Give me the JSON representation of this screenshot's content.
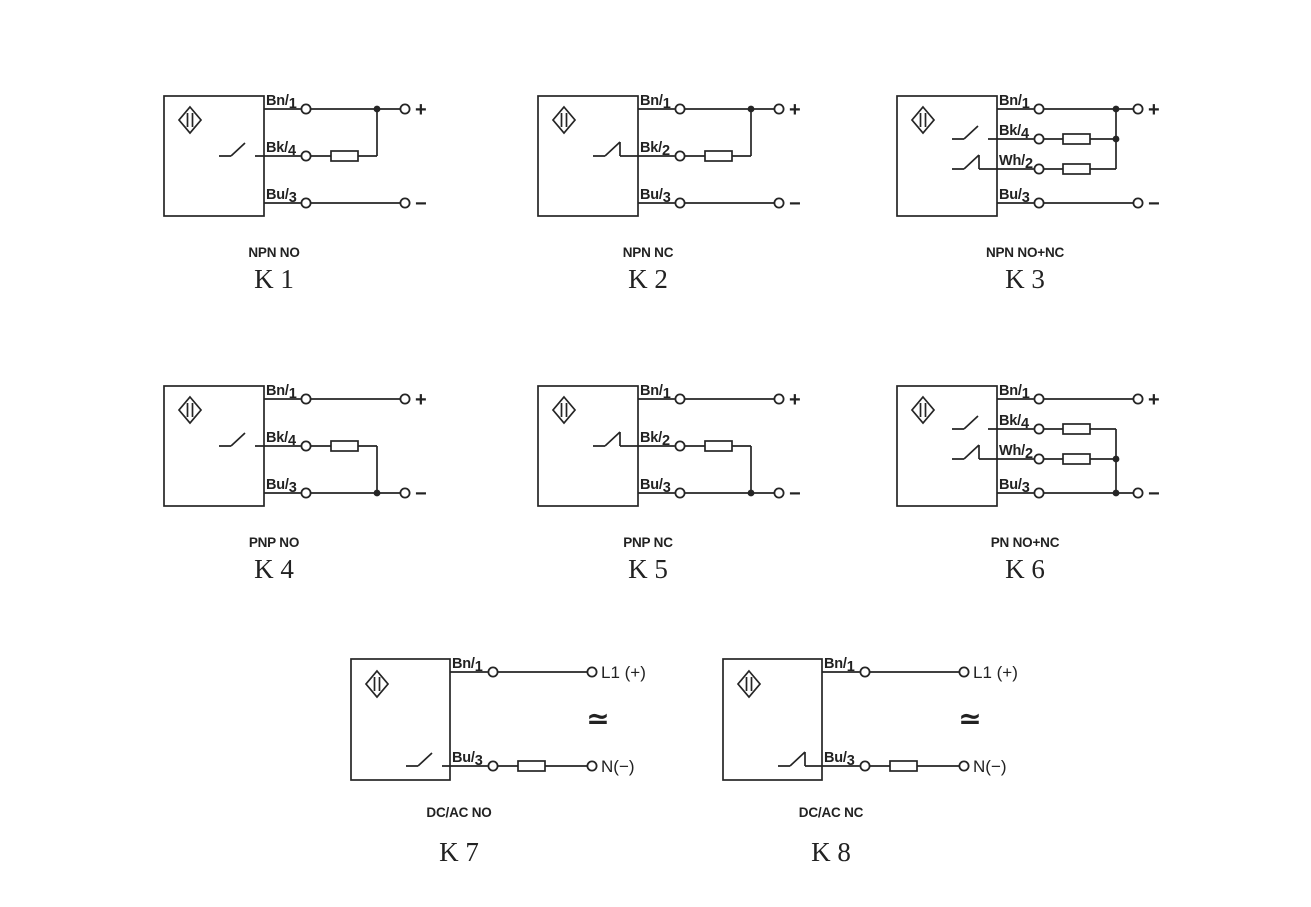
{
  "canvas": {
    "background": "#ffffff",
    "line_color": "#252525"
  },
  "diagrams": [
    {
      "id": "k1",
      "circuit": "NPN NO",
      "code": "K 1",
      "wires": [
        {
          "label": "Bn/1"
        },
        {
          "label": "Bk/4"
        },
        {
          "label": "Bu/3"
        }
      ],
      "terminals": [
        {
          "label": "+"
        },
        {
          "label": "−"
        }
      ],
      "switches": [
        "NO"
      ]
    },
    {
      "id": "k2",
      "circuit": "NPN NC",
      "code": "K 2",
      "wires": [
        {
          "label": "Bn/1"
        },
        {
          "label": "Bk/2"
        },
        {
          "label": "Bu/3"
        }
      ],
      "terminals": [
        {
          "label": "+"
        },
        {
          "label": "−"
        }
      ],
      "switches": [
        "NC"
      ]
    },
    {
      "id": "k3",
      "circuit": "NPN NO+NC",
      "code": "K 3",
      "wires": [
        {
          "label": "Bn/1"
        },
        {
          "label": "Bk/4"
        },
        {
          "label": "Wh/2"
        },
        {
          "label": "Bu/3"
        }
      ],
      "terminals": [
        {
          "label": "+"
        },
        {
          "label": "−"
        }
      ],
      "switches": [
        "NO",
        "NC"
      ]
    },
    {
      "id": "k4",
      "circuit": "PNP NO",
      "code": "K 4",
      "wires": [
        {
          "label": "Bn/1"
        },
        {
          "label": "Bk/4"
        },
        {
          "label": "Bu/3"
        }
      ],
      "terminals": [
        {
          "label": "+"
        },
        {
          "label": "−"
        }
      ],
      "switches": [
        "NO"
      ]
    },
    {
      "id": "k5",
      "circuit": "PNP NC",
      "code": "K 5",
      "wires": [
        {
          "label": "Bn/1"
        },
        {
          "label": "Bk/2"
        },
        {
          "label": "Bu/3"
        }
      ],
      "terminals": [
        {
          "label": "+"
        },
        {
          "label": "−"
        }
      ],
      "switches": [
        "NC"
      ]
    },
    {
      "id": "k6",
      "circuit": "PN NO+NC",
      "code": "K 6",
      "wires": [
        {
          "label": "Bn/1"
        },
        {
          "label": "Bk/4"
        },
        {
          "label": "Wh/2"
        },
        {
          "label": "Bu/3"
        }
      ],
      "terminals": [
        {
          "label": "+"
        },
        {
          "label": "−"
        }
      ],
      "switches": [
        "NO",
        "NC"
      ]
    },
    {
      "id": "k7",
      "circuit": "DC/AC NO",
      "code": "K 7",
      "wires": [
        {
          "label": "Bn/1"
        },
        {
          "label": "Bu/3"
        }
      ],
      "terminals": [
        {
          "label": "L1 (+)"
        },
        {
          "label": "N(−)"
        }
      ],
      "ac_dc_symbol": "≃",
      "switches": [
        "NO"
      ]
    },
    {
      "id": "k8",
      "circuit": "DC/AC NC",
      "code": "K 8",
      "wires": [
        {
          "label": "Bn/1"
        },
        {
          "label": "Bu/3"
        }
      ],
      "terminals": [
        {
          "label": "L1 (+)"
        },
        {
          "label": "N(−)"
        }
      ],
      "ac_dc_symbol": "≃",
      "switches": [
        "NC"
      ]
    }
  ]
}
